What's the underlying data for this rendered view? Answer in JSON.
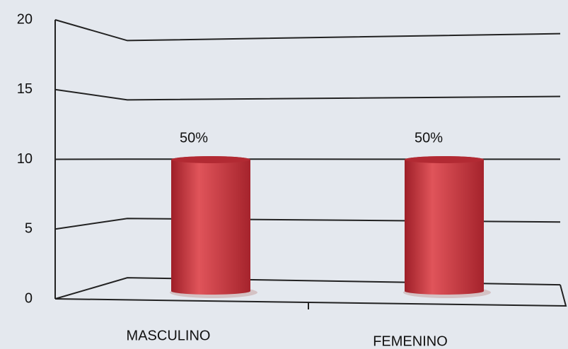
{
  "chart_data": {
    "type": "bar",
    "categories": [
      "MASCULINO",
      "FEMENINO"
    ],
    "values": [
      10,
      10
    ],
    "value_labels": [
      "50%",
      "50%"
    ],
    "color": "#c8343c",
    "ylim": [
      0,
      20
    ],
    "yticks": [
      0,
      5,
      10,
      15,
      20
    ],
    "grid": true
  }
}
